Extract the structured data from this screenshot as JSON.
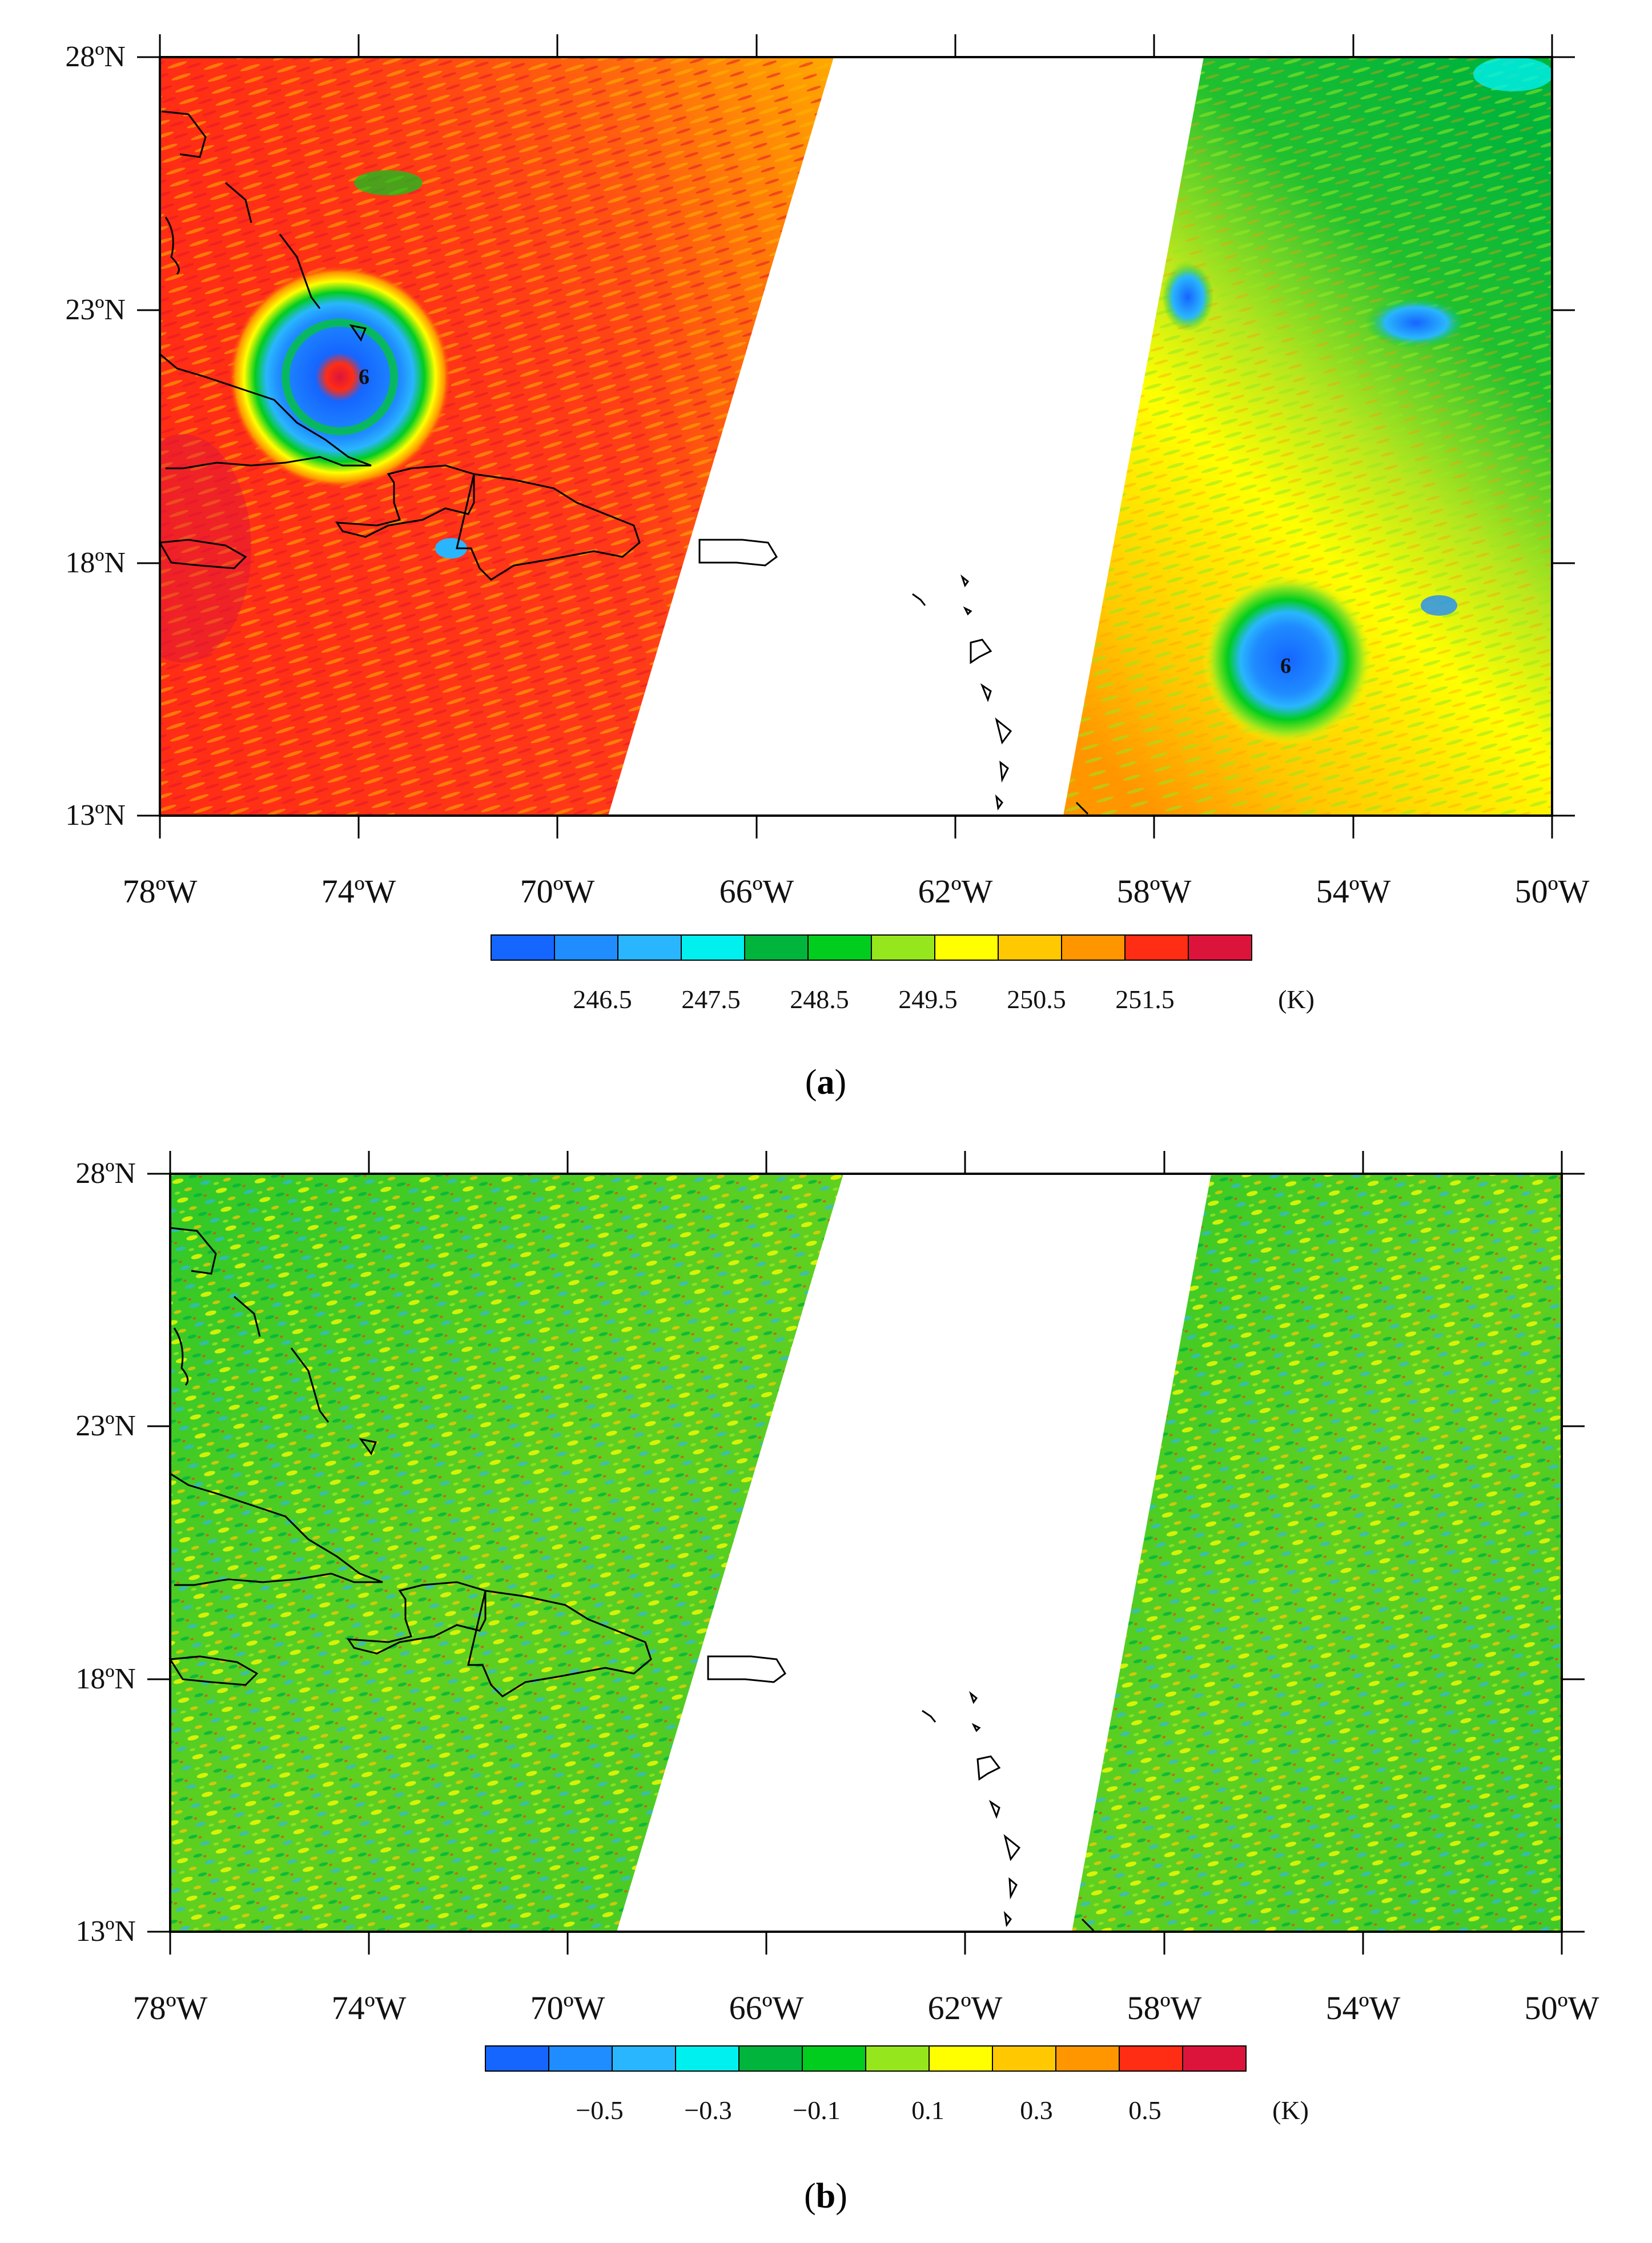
{
  "panels": [
    {
      "id": "a",
      "caption_letter": "a",
      "lat_labels": [
        "28ºN",
        "23ºN",
        "18ºN",
        "13ºN"
      ],
      "lon_labels": [
        "78ºW",
        "74ºW",
        "70ºW",
        "66ºW",
        "62ºW",
        "58ºW",
        "54ºW",
        "50ºW"
      ],
      "colorbar": {
        "tick_labels": [
          "246.5",
          "247.5",
          "248.5",
          "249.5",
          "250.5",
          "251.5"
        ],
        "unit": "(K)",
        "colors": [
          "#1565ff",
          "#1f8cff",
          "#29b6ff",
          "#00f0f0",
          "#00b43c",
          "#00cd1e",
          "#96e61e",
          "#ffff00",
          "#ffc800",
          "#ff9600",
          "#ff2d14",
          "#dc143c"
        ]
      }
    },
    {
      "id": "b",
      "caption_letter": "b",
      "lat_labels": [
        "28ºN",
        "23ºN",
        "18ºN",
        "13ºN"
      ],
      "lon_labels": [
        "78ºW",
        "74ºW",
        "70ºW",
        "66ºW",
        "62ºW",
        "58ºW",
        "54ºW",
        "50ºW"
      ],
      "colorbar": {
        "tick_labels": [
          "−0.5",
          "−0.3",
          "−0.1",
          "0.1",
          "0.3",
          "0.5"
        ],
        "unit": "(K)",
        "colors": [
          "#1565ff",
          "#1f8cff",
          "#29b6ff",
          "#00f0f0",
          "#00b43c",
          "#00cd1e",
          "#96e61e",
          "#ffff00",
          "#ffc800",
          "#ff9600",
          "#ff2d14",
          "#dc143c"
        ]
      }
    }
  ]
}
